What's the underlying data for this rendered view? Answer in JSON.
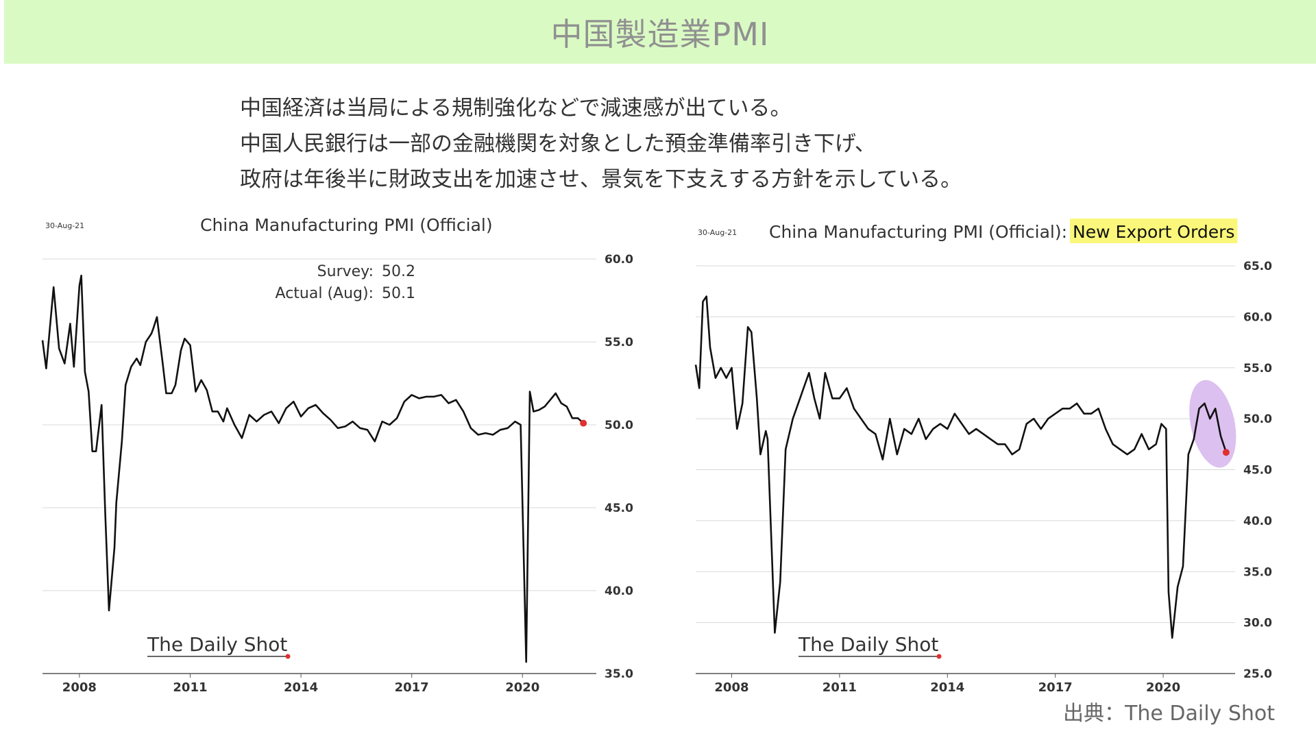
{
  "slide": {
    "title": "中国製造業PMI",
    "summary_lines": [
      "中国経済は当局による規制強化などで減速感が出ている。",
      "中国人民銀行は一部の金融機関を対象とした預金準備率引き下げ、",
      "政府は年後半に財政支出を加速させ、景気を下支えする方針を示している。"
    ],
    "source": "出典：The Daily Shot"
  },
  "chart_data": [
    {
      "type": "line",
      "title": "China Manufacturing PMI (Official)",
      "date_label": "30-Aug-21",
      "annotations": [
        {
          "label": "Survey:",
          "value": "50.2"
        },
        {
          "label": "Actual (Aug):",
          "value": "50.1"
        }
      ],
      "watermark": "The Daily Shot",
      "x_ticks": [
        "2008",
        "2011",
        "2014",
        "2017",
        "2020"
      ],
      "xlim": [
        2007.0,
        2022.0
      ],
      "y_ticks": [
        "35.0",
        "40.0",
        "45.0",
        "50.0",
        "55.0",
        "60.0"
      ],
      "ylim": [
        35,
        60
      ],
      "grid": true,
      "y_axis_side": "right",
      "last_point_color": "#e03030",
      "series": [
        {
          "color": "#111111",
          "x": [
            2007.0,
            2007.1,
            2007.3,
            2007.45,
            2007.6,
            2007.75,
            2007.85,
            2008.0,
            2008.05,
            2008.15,
            2008.25,
            2008.35,
            2008.45,
            2008.6,
            2008.7,
            2008.8,
            2008.95,
            2009.0,
            2009.15,
            2009.25,
            2009.4,
            2009.55,
            2009.65,
            2009.8,
            2009.95,
            2010.0,
            2010.1,
            2010.25,
            2010.35,
            2010.5,
            2010.6,
            2010.75,
            2010.85,
            2011.0,
            2011.15,
            2011.3,
            2011.45,
            2011.6,
            2011.75,
            2011.9,
            2012.0,
            2012.2,
            2012.4,
            2012.6,
            2012.8,
            2013.0,
            2013.2,
            2013.4,
            2013.6,
            2013.8,
            2014.0,
            2014.2,
            2014.4,
            2014.6,
            2014.8,
            2015.0,
            2015.2,
            2015.4,
            2015.6,
            2015.8,
            2016.0,
            2016.2,
            2016.4,
            2016.6,
            2016.8,
            2017.0,
            2017.2,
            2017.4,
            2017.6,
            2017.8,
            2018.0,
            2018.2,
            2018.4,
            2018.6,
            2018.8,
            2019.0,
            2019.2,
            2019.4,
            2019.6,
            2019.8,
            2019.95,
            2020.1,
            2020.2,
            2020.3,
            2020.45,
            2020.6,
            2020.75,
            2020.9,
            2021.05,
            2021.2,
            2021.35,
            2021.5,
            2021.65
          ],
          "values": [
            55.1,
            53.4,
            58.3,
            54.6,
            53.7,
            56.1,
            53.5,
            58.4,
            59.0,
            53.2,
            52.0,
            48.4,
            48.4,
            51.2,
            44.6,
            38.8,
            42.6,
            45.3,
            49.0,
            52.4,
            53.5,
            54.0,
            53.6,
            55.0,
            55.5,
            55.8,
            56.5,
            53.8,
            51.9,
            51.9,
            52.4,
            54.5,
            55.2,
            54.8,
            52.0,
            52.7,
            52.1,
            50.8,
            50.8,
            50.2,
            51.0,
            50.0,
            49.2,
            50.6,
            50.2,
            50.6,
            50.8,
            50.1,
            51.0,
            51.4,
            50.5,
            51.0,
            51.2,
            50.7,
            50.3,
            49.8,
            49.9,
            50.2,
            49.8,
            49.7,
            49.0,
            50.2,
            50.0,
            50.4,
            51.4,
            51.8,
            51.6,
            51.7,
            51.7,
            51.8,
            51.3,
            51.5,
            50.8,
            49.8,
            49.4,
            49.5,
            49.4,
            49.7,
            49.8,
            50.2,
            50.0,
            35.7,
            52.0,
            50.8,
            50.9,
            51.1,
            51.5,
            51.9,
            51.3,
            51.1,
            50.4,
            50.4,
            50.1
          ]
        }
      ]
    },
    {
      "type": "line",
      "title": "China Manufacturing PMI (Official):",
      "title_highlight": "New Export Orders",
      "highlight_color": "#faf77a",
      "date_label": "30-Aug-21",
      "watermark": "The Daily Shot",
      "x_ticks": [
        "2008",
        "2011",
        "2014",
        "2017",
        "2020"
      ],
      "xlim": [
        2007.0,
        2022.0
      ],
      "y_ticks": [
        "25.0",
        "30.0",
        "35.0",
        "40.0",
        "45.0",
        "50.0",
        "55.0",
        "60.0",
        "65.0"
      ],
      "ylim": [
        25,
        65
      ],
      "grid": true,
      "y_axis_side": "right",
      "last_point_color": "#e03030",
      "ellipse_color": "#dcc0f0",
      "series": [
        {
          "color": "#111111",
          "x": [
            2007.0,
            2007.1,
            2007.2,
            2007.3,
            2007.4,
            2007.55,
            2007.7,
            2007.85,
            2008.0,
            2008.15,
            2008.3,
            2008.45,
            2008.55,
            2008.7,
            2008.8,
            2008.95,
            2009.0,
            2009.2,
            2009.35,
            2009.5,
            2009.7,
            2009.9,
            2010.0,
            2010.15,
            2010.3,
            2010.45,
            2010.6,
            2010.8,
            2011.0,
            2011.2,
            2011.4,
            2011.6,
            2011.8,
            2012.0,
            2012.2,
            2012.4,
            2012.6,
            2012.8,
            2013.0,
            2013.2,
            2013.4,
            2013.6,
            2013.8,
            2014.0,
            2014.2,
            2014.4,
            2014.6,
            2014.8,
            2015.0,
            2015.2,
            2015.4,
            2015.6,
            2015.8,
            2016.0,
            2016.2,
            2016.4,
            2016.6,
            2016.8,
            2017.0,
            2017.2,
            2017.4,
            2017.6,
            2017.8,
            2018.0,
            2018.2,
            2018.4,
            2018.6,
            2018.8,
            2019.0,
            2019.2,
            2019.4,
            2019.6,
            2019.8,
            2019.95,
            2020.08,
            2020.15,
            2020.25,
            2020.4,
            2020.55,
            2020.7,
            2020.85,
            2021.0,
            2021.15,
            2021.3,
            2021.45,
            2021.6,
            2021.75
          ],
          "values": [
            55.3,
            53.0,
            61.5,
            62.0,
            57.0,
            54.0,
            55.0,
            54.0,
            55.0,
            49.0,
            51.5,
            59.0,
            58.5,
            52.0,
            46.5,
            48.8,
            48.0,
            29.0,
            34.0,
            47.0,
            50.0,
            52.0,
            53.0,
            54.5,
            52.0,
            50.0,
            54.5,
            52.0,
            52.0,
            53.0,
            51.0,
            50.0,
            49.0,
            48.5,
            46.0,
            50.0,
            46.5,
            49.0,
            48.5,
            50.0,
            48.0,
            49.0,
            49.5,
            49.0,
            50.5,
            49.5,
            48.5,
            49.0,
            48.5,
            48.0,
            47.5,
            47.5,
            46.5,
            47.0,
            49.5,
            50.0,
            49.0,
            50.0,
            50.5,
            51.0,
            51.0,
            51.5,
            50.5,
            50.5,
            51.0,
            49.0,
            47.5,
            47.0,
            46.5,
            47.0,
            48.5,
            47.0,
            47.5,
            49.5,
            49.0,
            33.0,
            28.5,
            33.5,
            35.5,
            46.5,
            48.0,
            51.0,
            51.5,
            50.0,
            51.0,
            48.3,
            46.7
          ]
        }
      ]
    }
  ]
}
